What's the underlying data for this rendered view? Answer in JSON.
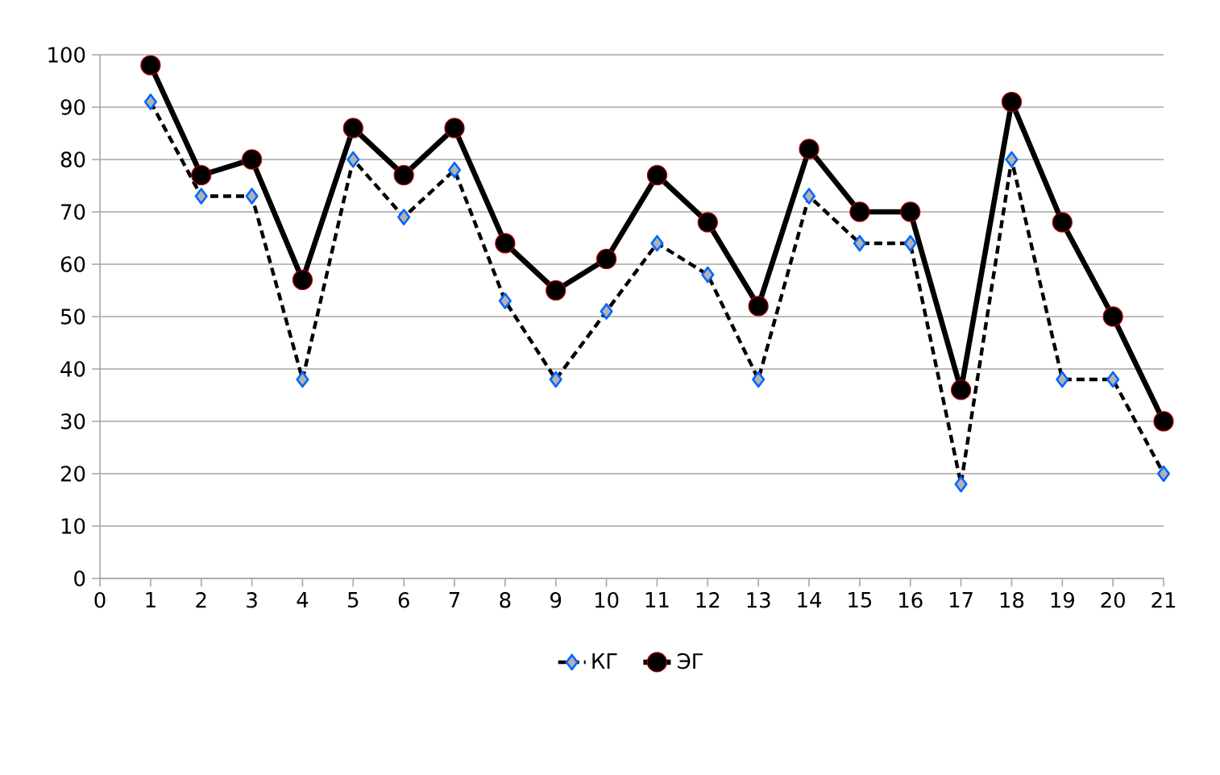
{
  "chart_data": {
    "type": "line",
    "x": [
      1,
      2,
      3,
      4,
      5,
      6,
      7,
      8,
      9,
      10,
      11,
      12,
      13,
      14,
      15,
      16,
      17,
      18,
      19,
      20,
      21
    ],
    "series": [
      {
        "name": "КГ",
        "color": "#000000",
        "line_style": "dashed",
        "marker": "diamond",
        "values": [
          91,
          73,
          73,
          38,
          80,
          69,
          78,
          53,
          38,
          51,
          64,
          58,
          38,
          73,
          64,
          64,
          18,
          80,
          38,
          38,
          20
        ]
      },
      {
        "name": "ЭГ",
        "color": "#000000",
        "line_style": "solid",
        "marker": "circle",
        "values": [
          98,
          77,
          80,
          57,
          86,
          77,
          86,
          64,
          55,
          61,
          77,
          68,
          52,
          82,
          70,
          70,
          36,
          91,
          68,
          50,
          30
        ]
      }
    ],
    "xlim": [
      0,
      21
    ],
    "xticks": [
      0,
      1,
      2,
      3,
      4,
      5,
      6,
      7,
      8,
      9,
      10,
      11,
      12,
      13,
      14,
      15,
      16,
      17,
      18,
      19,
      20,
      21
    ],
    "ylim": [
      0,
      100
    ],
    "yticks": [
      0,
      10,
      20,
      30,
      40,
      50,
      60,
      70,
      80,
      90,
      100
    ],
    "grid": "y",
    "legend": "bottom"
  }
}
